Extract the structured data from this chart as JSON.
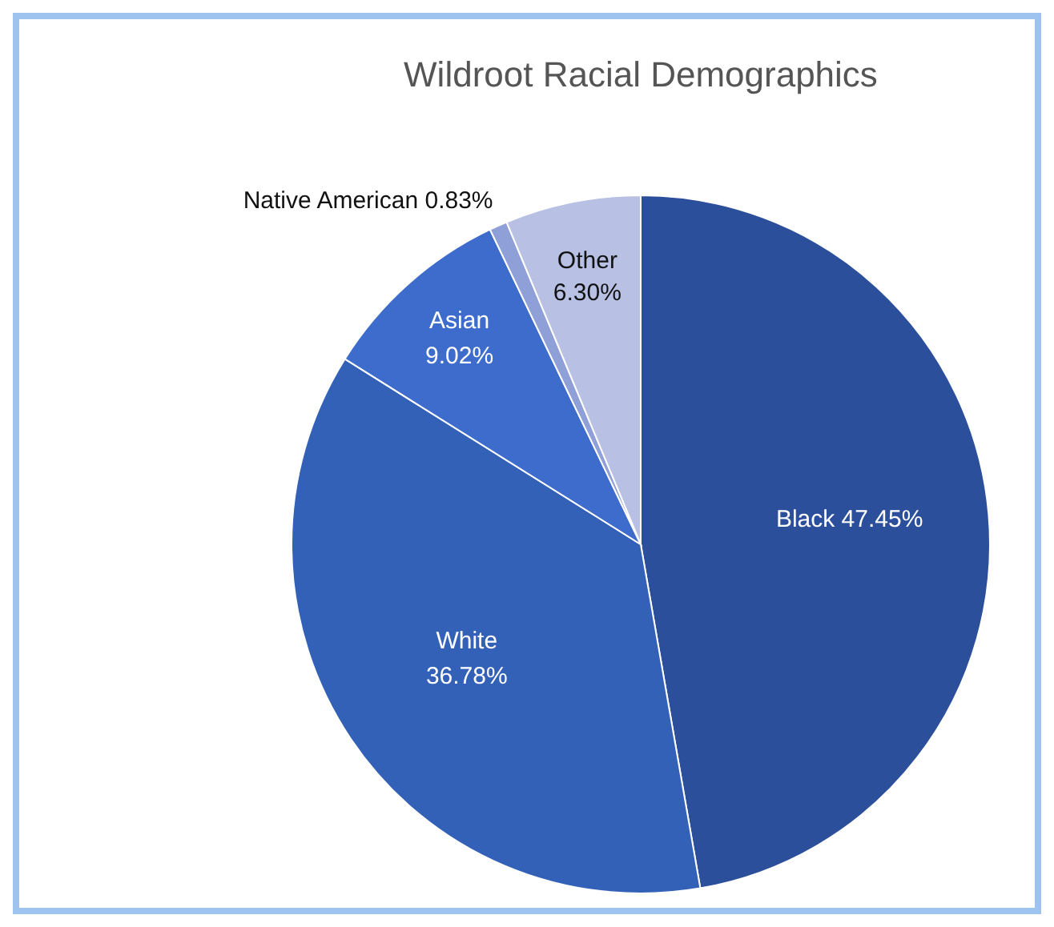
{
  "chart_data": {
    "type": "pie",
    "title": "Wildroot Racial Demographics",
    "categories": [
      "Black",
      "White",
      "Asian",
      "Native American",
      "Other"
    ],
    "values": [
      47.45,
      36.78,
      9.02,
      0.83,
      6.3
    ],
    "value_labels": [
      "47.45%",
      "36.78%",
      "9.02%",
      "0.83%",
      "6.30%"
    ],
    "colors": [
      "#2c4f9b",
      "#3361b8",
      "#3d6ccc",
      "#8f9fd8",
      "#b8c0e4"
    ]
  }
}
